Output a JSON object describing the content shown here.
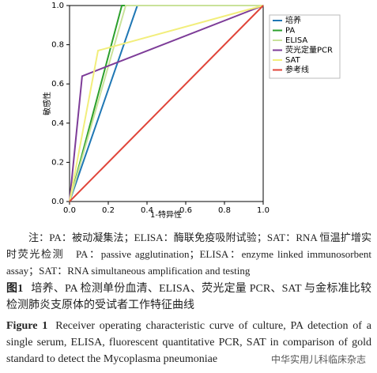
{
  "chart_data": {
    "type": "line",
    "xlabel": "1-特异性",
    "ylabel": "敏感性",
    "xlim": [
      0,
      1
    ],
    "ylim": [
      0,
      1
    ],
    "xticks": [
      {
        "value": 0,
        "label": "0.0"
      },
      0.2,
      0.4,
      0.6,
      0.8,
      {
        "value": 1,
        "label": "1.0"
      }
    ],
    "yticks": [
      {
        "value": 0,
        "label": "0.0"
      },
      0.2,
      0.4,
      0.6,
      0.8,
      {
        "value": 1,
        "label": "1.0"
      }
    ],
    "series": [
      {
        "name": "培养",
        "color": "#1f77b4",
        "x": [
          0,
          0.35,
          1
        ],
        "values": [
          0,
          1,
          1
        ]
      },
      {
        "name": "PA",
        "color": "#2ca02c",
        "x": [
          0,
          0.27,
          1
        ],
        "values": [
          0,
          1,
          1
        ]
      },
      {
        "name": "ELISA",
        "color": "#c9e29a",
        "x": [
          0,
          0.29,
          1
        ],
        "values": [
          0,
          1,
          1
        ]
      },
      {
        "name": "荧光定量PCR",
        "color": "#7d3c98",
        "x": [
          0,
          0.065,
          1
        ],
        "values": [
          0,
          0.64,
          1
        ]
      },
      {
        "name": "SAT",
        "color": "#f2ee7c",
        "x": [
          0,
          0.147,
          1
        ],
        "values": [
          0,
          0.77,
          1
        ]
      },
      {
        "name": "参考线",
        "color": "#e0453a",
        "x": [
          0,
          1
        ],
        "values": [
          0,
          1
        ]
      }
    ]
  },
  "note": "注：PA：被动凝集法；ELISA：酶联免疫吸附试验；SAT：RNA 恒温扩增实时荧光检测　PA：passive agglutination；ELISA：enzyme linked immunosorbent assay；SAT：RNA simultaneous amplification and testing",
  "caption_cn_label": "图1",
  "caption_cn": "培养、PA 检测单份血清、ELISA、荧光定量 PCR、SAT 与金标准比较检测肺炎支原体的受试者工作特征曲线",
  "caption_en_label": "Figure 1",
  "caption_en": "Receiver operating characteristic curve of culture, PA detection of a single serum, ELISA, fluorescent quantitative PCR, SAT in comparison of gold standard to detect the Mycoplasma pneumoniae",
  "watermark": "中华实用儿科临床杂志"
}
